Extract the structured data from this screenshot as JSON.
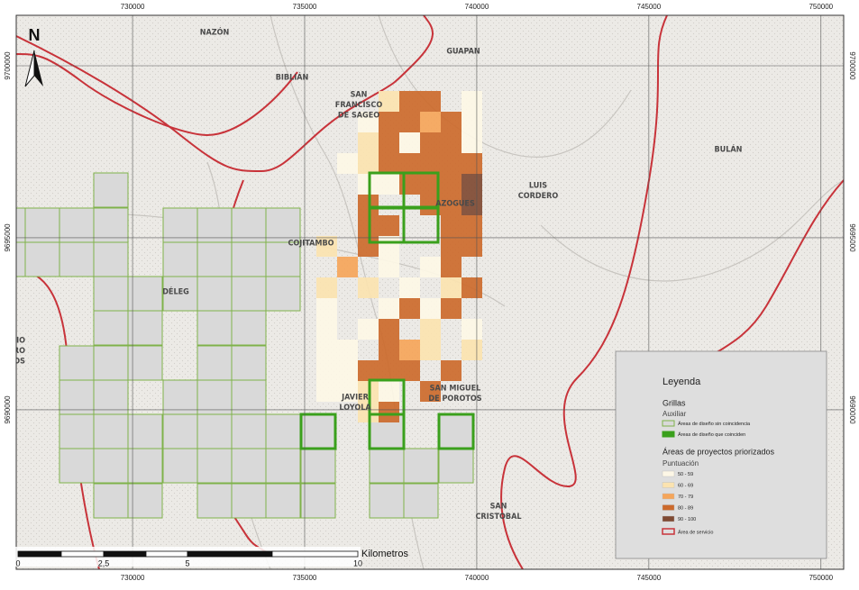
{
  "map": {
    "xlim": [
      726620,
      750660
    ],
    "ylim": [
      9685365,
      9701466
    ],
    "eastings": [
      730000,
      735000,
      740000,
      745000,
      750000
    ],
    "northings": [
      9700000,
      9695000,
      9690000
    ],
    "north": "N",
    "places": [
      [
        "NAZÓN"
      ],
      [
        "BIBLIÁN"
      ],
      [
        "GUAPAN"
      ],
      [
        "BULÁN"
      ],
      [
        "LUIS",
        "CORDERO"
      ],
      [
        "AZOGUES"
      ],
      [
        "COJITAMBO"
      ],
      [
        "DÉLEG"
      ],
      [
        "SAN",
        "FRANCISCO",
        "DE SAGEO"
      ],
      [
        "JAVIER",
        "LOYOLA"
      ],
      [
        "SAN MIGUEL",
        "DE POROTOS"
      ],
      [
        "SAN",
        "CRISTOBAL"
      ],
      [
        "AVIO",
        "DERO",
        "CIOS"
      ]
    ],
    "scale_bar": {
      "labels": [
        "0",
        "2,5",
        "5",
        "10"
      ],
      "unit": "Kilometros"
    },
    "legend": {
      "title": "Leyenda",
      "group": "Grillas",
      "subgroup": "Auxiliar",
      "grid_items": [
        "Áreas de diseño sin coincidencia",
        "Áreas de diseño que coinciden"
      ],
      "score_title": "Áreas de proyectos priorizados",
      "score_subtitle": "Puntuación",
      "score_items": [
        "50 - 59",
        "60 - 69",
        "70 - 79",
        "80 - 89",
        "90 - 100"
      ],
      "service_area": "Área de servicio"
    }
  }
}
